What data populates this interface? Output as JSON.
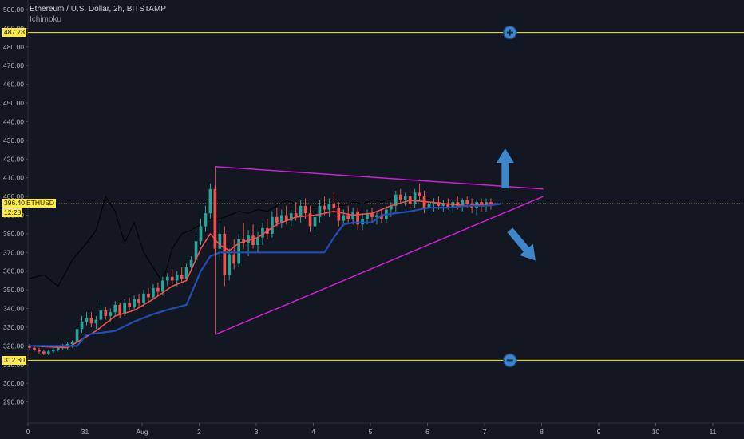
{
  "header": {
    "title": "Ethereum / U.S. Dollar, 2h, BITSTAMP",
    "indicator": "Ichimoku"
  },
  "chart_data": {
    "type": "candlestick",
    "ylim": [
      280,
      503
    ],
    "y_ticks": [
      290,
      300,
      310,
      320,
      330,
      340,
      350,
      360,
      370,
      380,
      390,
      400,
      410,
      420,
      430,
      440,
      450,
      460,
      470,
      480,
      490,
      500
    ],
    "x_ticks": [
      {
        "label": "0",
        "t": 0
      },
      {
        "label": "31",
        "t": 1
      },
      {
        "label": "Aug",
        "t": 2
      },
      {
        "label": "2",
        "t": 3
      },
      {
        "label": "3",
        "t": 4
      },
      {
        "label": "4",
        "t": 5
      },
      {
        "label": "5",
        "t": 6
      },
      {
        "label": "6",
        "t": 7
      },
      {
        "label": "7",
        "t": 8
      },
      {
        "label": "8",
        "t": 9
      },
      {
        "label": "9",
        "t": 10
      },
      {
        "label": "10",
        "t": 11
      },
      {
        "label": "11",
        "t": 12
      }
    ],
    "t_start": 0,
    "bars_per_day": 12,
    "horizontal_levels": [
      {
        "value": 487.78,
        "label": "487.78",
        "color": "#ffeb3b"
      },
      {
        "value": 312.3,
        "label": "312.30",
        "color": "#ffeb3b"
      }
    ],
    "current_price": {
      "value": 396.4,
      "label": "396.40",
      "symbol": "ETHUSD",
      "countdown": "12:28"
    },
    "candles": [
      [
        320,
        321,
        318,
        319
      ],
      [
        319,
        320,
        317,
        318
      ],
      [
        318,
        319,
        316,
        317
      ],
      [
        317,
        318,
        315,
        316
      ],
      [
        316,
        318,
        315,
        317
      ],
      [
        317,
        319,
        316,
        318
      ],
      [
        318,
        320,
        317,
        319
      ],
      [
        319,
        321,
        318,
        320
      ],
      [
        320,
        322,
        318,
        321
      ],
      [
        321,
        323,
        319,
        322
      ],
      [
        322,
        330,
        321,
        329
      ],
      [
        329,
        336,
        327,
        333
      ],
      [
        333,
        338,
        331,
        335
      ],
      [
        335,
        338,
        330,
        332
      ],
      [
        332,
        336,
        329,
        334
      ],
      [
        334,
        342,
        333,
        339
      ],
      [
        339,
        341,
        334,
        336
      ],
      [
        336,
        340,
        333,
        338
      ],
      [
        338,
        344,
        336,
        342
      ],
      [
        342,
        343,
        335,
        337
      ],
      [
        337,
        345,
        336,
        343
      ],
      [
        343,
        346,
        339,
        341
      ],
      [
        341,
        347,
        339,
        345
      ],
      [
        345,
        348,
        341,
        343
      ],
      [
        343,
        350,
        341,
        348
      ],
      [
        348,
        351,
        344,
        346
      ],
      [
        346,
        353,
        345,
        351
      ],
      [
        351,
        354,
        347,
        349
      ],
      [
        349,
        357,
        347,
        355
      ],
      [
        355,
        359,
        352,
        357
      ],
      [
        357,
        361,
        353,
        355
      ],
      [
        355,
        360,
        352,
        358
      ],
      [
        358,
        362,
        354,
        356
      ],
      [
        356,
        364,
        355,
        362
      ],
      [
        362,
        368,
        360,
        366
      ],
      [
        366,
        379,
        364,
        376
      ],
      [
        376,
        388,
        374,
        384
      ],
      [
        384,
        395,
        381,
        391
      ],
      [
        391,
        407,
        388,
        404
      ],
      [
        404,
        406,
        368,
        372
      ],
      [
        372,
        386,
        366,
        380
      ],
      [
        380,
        384,
        352,
        358
      ],
      [
        358,
        372,
        355,
        369
      ],
      [
        369,
        377,
        361,
        364
      ],
      [
        364,
        380,
        362,
        377
      ],
      [
        377,
        386,
        372,
        375
      ],
      [
        375,
        382,
        368,
        379
      ],
      [
        379,
        385,
        372,
        374
      ],
      [
        374,
        381,
        370,
        378
      ],
      [
        378,
        386,
        374,
        383
      ],
      [
        383,
        388,
        377,
        380
      ],
      [
        380,
        392,
        378,
        389
      ],
      [
        389,
        394,
        384,
        386
      ],
      [
        386,
        393,
        383,
        390
      ],
      [
        390,
        395,
        385,
        387
      ],
      [
        387,
        393,
        384,
        391
      ],
      [
        391,
        397,
        387,
        389
      ],
      [
        389,
        398,
        386,
        395
      ],
      [
        395,
        399,
        388,
        391
      ],
      [
        391,
        395,
        381,
        384
      ],
      [
        384,
        392,
        380,
        389
      ],
      [
        389,
        398,
        386,
        395
      ],
      [
        395,
        400,
        390,
        393
      ],
      [
        393,
        399,
        389,
        396
      ],
      [
        396,
        402,
        391,
        394
      ],
      [
        394,
        397,
        384,
        387
      ],
      [
        387,
        393,
        384,
        390
      ],
      [
        390,
        395,
        386,
        388
      ],
      [
        388,
        394,
        385,
        392
      ],
      [
        392,
        394,
        382,
        385
      ],
      [
        385,
        391,
        382,
        388
      ],
      [
        388,
        393,
        385,
        391
      ],
      [
        391,
        394,
        386,
        389
      ],
      [
        389,
        392,
        385,
        390
      ],
      [
        390,
        393,
        386,
        388
      ],
      [
        388,
        395,
        386,
        393
      ],
      [
        393,
        397,
        389,
        395
      ],
      [
        395,
        403,
        392,
        401
      ],
      [
        401,
        404,
        396,
        398
      ],
      [
        398,
        402,
        395,
        400
      ],
      [
        400,
        402,
        394,
        396
      ],
      [
        396,
        404,
        394,
        402
      ],
      [
        402,
        407,
        398,
        400
      ],
      [
        400,
        403,
        391,
        394
      ],
      [
        394,
        398,
        391,
        396
      ],
      [
        396,
        399,
        392,
        397
      ],
      [
        397,
        400,
        393,
        395
      ],
      [
        395,
        398,
        392,
        396
      ],
      [
        396,
        399,
        393,
        394
      ],
      [
        394,
        398,
        391,
        397
      ],
      [
        397,
        400,
        393,
        395
      ],
      [
        395,
        399,
        392,
        398
      ],
      [
        398,
        400,
        394,
        396
      ],
      [
        396,
        399,
        391,
        394
      ],
      [
        394,
        398,
        390,
        397
      ],
      [
        397,
        399,
        392,
        395
      ],
      [
        395,
        399,
        392,
        397
      ],
      [
        397,
        399,
        393,
        396
      ]
    ],
    "chikou": [
      [
        0,
        356
      ],
      [
        3,
        358
      ],
      [
        6,
        352
      ],
      [
        9,
        366
      ],
      [
        12,
        375
      ],
      [
        14,
        382
      ],
      [
        16,
        400
      ],
      [
        18,
        392
      ],
      [
        20,
        375
      ],
      [
        22,
        386
      ],
      [
        24,
        370
      ],
      [
        26,
        362
      ],
      [
        28,
        354
      ],
      [
        30,
        372
      ],
      [
        32,
        380
      ],
      [
        34,
        382
      ],
      [
        36,
        385
      ],
      [
        38,
        388
      ],
      [
        40,
        388
      ],
      [
        42,
        390
      ],
      [
        44,
        392
      ],
      [
        46,
        391
      ],
      [
        48,
        393
      ],
      [
        50,
        392
      ],
      [
        52,
        395
      ],
      [
        54,
        398
      ],
      [
        56,
        396
      ],
      [
        58,
        395
      ],
      [
        60,
        394
      ],
      [
        62,
        397
      ],
      [
        64,
        396
      ],
      [
        66,
        395
      ],
      [
        68,
        397
      ],
      [
        70,
        396
      ],
      [
        72,
        398
      ],
      [
        74,
        397
      ],
      [
        76,
        399
      ],
      [
        78,
        400
      ],
      [
        80,
        398
      ],
      [
        82,
        400
      ],
      [
        84,
        399
      ]
    ],
    "tenkan": [
      [
        0,
        320
      ],
      [
        8,
        319
      ],
      [
        10,
        322
      ],
      [
        14,
        328
      ],
      [
        18,
        336
      ],
      [
        22,
        339
      ],
      [
        26,
        345
      ],
      [
        30,
        352
      ],
      [
        33,
        355
      ],
      [
        36,
        372
      ],
      [
        38,
        380
      ],
      [
        40,
        374
      ],
      [
        42,
        371
      ],
      [
        44,
        375
      ],
      [
        48,
        378
      ],
      [
        52,
        385
      ],
      [
        56,
        389
      ],
      [
        60,
        390
      ],
      [
        64,
        392
      ],
      [
        68,
        390
      ],
      [
        72,
        391
      ],
      [
        76,
        395
      ],
      [
        80,
        398
      ],
      [
        84,
        397
      ],
      [
        88,
        396
      ],
      [
        92,
        395
      ],
      [
        96,
        396
      ],
      [
        99,
        396
      ]
    ],
    "kijun": [
      [
        0,
        320
      ],
      [
        10,
        320
      ],
      [
        12,
        326
      ],
      [
        18,
        328
      ],
      [
        22,
        333
      ],
      [
        26,
        337
      ],
      [
        30,
        340
      ],
      [
        33,
        342
      ],
      [
        36,
        360
      ],
      [
        38,
        368
      ],
      [
        40,
        370
      ],
      [
        48,
        370
      ],
      [
        56,
        370
      ],
      [
        62,
        370
      ],
      [
        64,
        378
      ],
      [
        66,
        385
      ],
      [
        68,
        386
      ],
      [
        72,
        386
      ],
      [
        74,
        390
      ],
      [
        80,
        392
      ],
      [
        84,
        394
      ],
      [
        88,
        394
      ],
      [
        92,
        395
      ],
      [
        96,
        395
      ],
      [
        99,
        396
      ]
    ],
    "triangle": {
      "upper": [
        [
          39,
          416
        ],
        [
          108,
          404
        ]
      ],
      "lower": [
        [
          39,
          326
        ],
        [
          108,
          400
        ]
      ],
      "vertical": [
        [
          39,
          416
        ],
        [
          39,
          326
        ]
      ]
    },
    "annotations": [
      {
        "type": "up-arrow",
        "t": 100,
        "value": 412
      },
      {
        "type": "down-arrow",
        "t": 101,
        "value": 382
      },
      {
        "type": "plus-circle",
        "t": 101,
        "value": 487.78
      },
      {
        "type": "minus-circle",
        "t": 101,
        "value": 312.3
      }
    ]
  },
  "colors": {
    "bg": "#131722",
    "up": "#26a69a",
    "down": "#ef5350",
    "tenkan": "#f0504d",
    "kijun": "#1f4fb5",
    "chikou": "#000000",
    "triangle": "#d01fd6",
    "annotation": "#3d86c9",
    "level": "#ffeb3b",
    "axis_text": "#b2b5be"
  }
}
